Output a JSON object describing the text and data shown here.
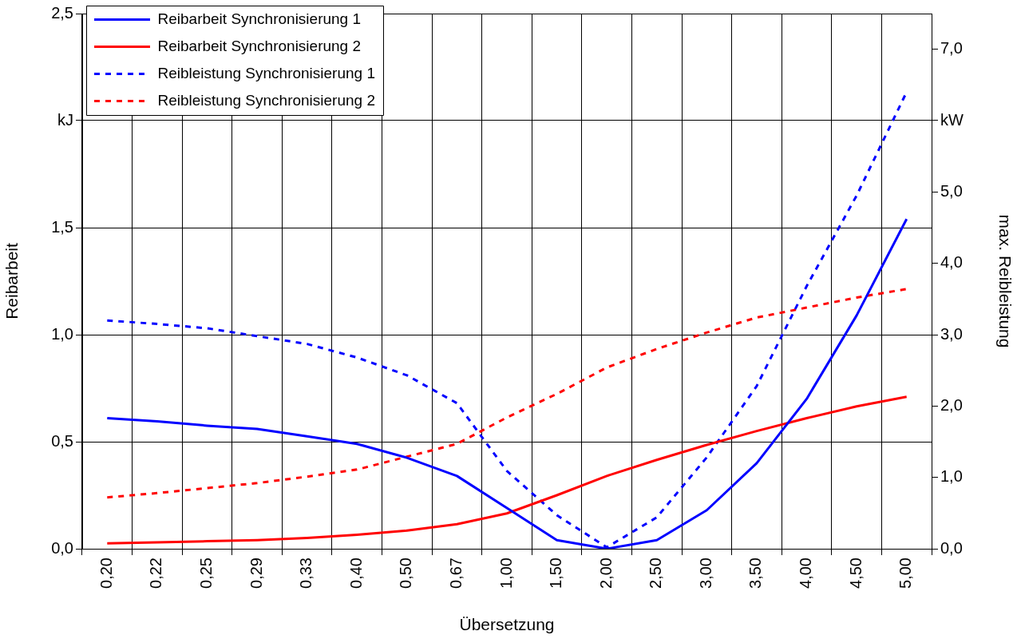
{
  "chart_data": {
    "type": "line",
    "xlabel": "Übersetzung",
    "ylabel": "Reibarbeit",
    "y2label": "max. Reibleistung",
    "categories": [
      "0,20",
      "0,22",
      "0,25",
      "0,29",
      "0,33",
      "0,40",
      "0,50",
      "0,67",
      "1,00",
      "1,50",
      "2,00",
      "2,50",
      "3,00",
      "3,50",
      "4,00",
      "4,50",
      "5,00"
    ],
    "series": [
      {
        "name": "Reibarbeit Synchronisierung 1",
        "color": "#0000ff",
        "line_style": "solid",
        "values": [
          0.61,
          0.595,
          0.575,
          0.56,
          0.525,
          0.49,
          0.425,
          0.34,
          0.19,
          0.04,
          0.0,
          0.04,
          0.18,
          0.4,
          0.7,
          1.09,
          1.54
        ]
      },
      {
        "name": "Reibarbeit Synchronisierung 2",
        "color": "#ff0000",
        "line_style": "solid",
        "values": [
          0.025,
          0.03,
          0.035,
          0.04,
          0.05,
          0.065,
          0.085,
          0.115,
          0.165,
          0.25,
          0.34,
          0.415,
          0.485,
          0.55,
          0.61,
          0.665,
          0.71
        ]
      },
      {
        "name": "Reibleistung Synchronisierung 1",
        "color": "#0000ff",
        "line_style": "dashed",
        "axis": "y2",
        "values": [
          3.2,
          3.15,
          3.09,
          2.98,
          2.87,
          2.68,
          2.43,
          2.04,
          1.09,
          0.47,
          0.02,
          0.44,
          1.28,
          2.28,
          3.68,
          4.95,
          6.4
        ]
      },
      {
        "name": "Reibleistung Synchronisierung 2",
        "color": "#ff0000",
        "line_style": "dashed",
        "axis": "y2",
        "values": [
          0.72,
          0.78,
          0.85,
          0.92,
          1.01,
          1.11,
          1.29,
          1.47,
          1.84,
          2.17,
          2.54,
          2.8,
          3.03,
          3.24,
          3.38,
          3.52,
          3.64
        ]
      }
    ],
    "ylim": [
      0,
      2.5
    ],
    "yticks": [
      {
        "value": 0,
        "label": "0,0"
      },
      {
        "value": 0.5,
        "label": "0,5"
      },
      {
        "value": 1,
        "label": "1,0"
      },
      {
        "value": 1.5,
        "label": "1,5"
      },
      {
        "value": 2,
        "label": "kJ"
      },
      {
        "value": 2.5,
        "label": "2,5"
      }
    ],
    "y2lim": [
      0,
      7.5
    ],
    "y2ticks": [
      {
        "value": 0,
        "label": "0,0"
      },
      {
        "value": 1,
        "label": "1,0"
      },
      {
        "value": 2,
        "label": "2,0"
      },
      {
        "value": 3,
        "label": "3,0"
      },
      {
        "value": 4,
        "label": "4,0"
      },
      {
        "value": 5,
        "label": "5,0"
      },
      {
        "value": 6,
        "label": "kW"
      },
      {
        "value": 7,
        "label": "7,0"
      }
    ],
    "grid": true,
    "legend": "top left",
    "marker": "none"
  }
}
